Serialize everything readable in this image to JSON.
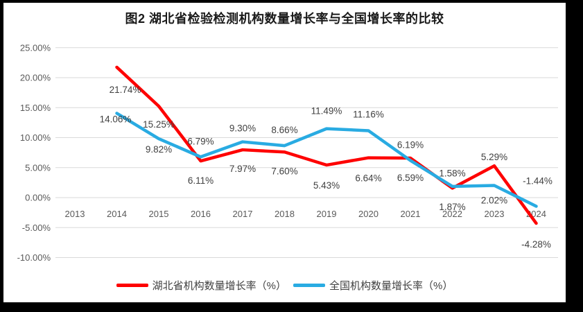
{
  "window": {
    "frame_color": "#000000",
    "background_color": "#ffffff"
  },
  "chart_data": {
    "type": "line",
    "title": "图2  湖北省检验检测机构数量增长率与全国增长率的比较",
    "categories": [
      "2013",
      "2014",
      "2015",
      "2016",
      "2017",
      "2018",
      "2019",
      "2020",
      "2021",
      "2022",
      "2023",
      "2024"
    ],
    "series": [
      {
        "id": "hubei",
        "name": "湖北省机构数量增长率（%）",
        "color": "#fe0000",
        "values": [
          null,
          21.74,
          15.25,
          6.11,
          7.97,
          7.6,
          5.43,
          6.64,
          6.59,
          1.58,
          5.29,
          -4.28
        ],
        "labels": [
          null,
          "21.74%",
          "15.25%",
          "6.11%",
          "7.97%",
          "7.60%",
          "5.43%",
          "6.64%",
          "6.59%",
          "1.58%",
          "5.29%",
          "-4.28%"
        ],
        "label_offsets": [
          null,
          [
            12,
            37
          ],
          [
            0,
            31
          ],
          [
            0,
            33
          ],
          [
            0,
            32
          ],
          [
            0,
            32
          ],
          [
            0,
            34
          ],
          [
            0,
            34
          ],
          [
            0,
            33
          ],
          [
            0,
            -17
          ],
          [
            0,
            -8
          ],
          [
            0,
            35
          ]
        ]
      },
      {
        "id": "national",
        "name": "全国机构数量增长率（%）",
        "color": "#29abe2",
        "values": [
          null,
          14.06,
          9.82,
          6.79,
          9.3,
          8.66,
          11.49,
          11.16,
          6.19,
          1.87,
          2.02,
          -1.44
        ],
        "labels": [
          null,
          "14.06%",
          "9.82%",
          "6.79%",
          "9.30%",
          "8.66%",
          "11.49%",
          "11.16%",
          "6.19%",
          "1.87%",
          "2.02%",
          "-1.44%"
        ],
        "label_offsets": [
          null,
          [
            -2,
            13
          ],
          [
            0,
            20
          ],
          [
            0,
            -18
          ],
          [
            0,
            -15
          ],
          [
            0,
            -18
          ],
          [
            0,
            -21
          ],
          [
            0,
            -19
          ],
          [
            0,
            -18
          ],
          [
            0,
            34
          ],
          [
            0,
            26
          ],
          [
            2,
            -32
          ]
        ]
      }
    ],
    "y_axis": {
      "min": -10,
      "max": 25,
      "step": 5,
      "ticks": [
        {
          "value": 25,
          "label": "25.00%"
        },
        {
          "value": 20,
          "label": "20.00%"
        },
        {
          "value": 15,
          "label": "15.00%"
        },
        {
          "value": 10,
          "label": "10.00%"
        },
        {
          "value": 5,
          "label": "5.00%"
        },
        {
          "value": 0,
          "label": "0.00%"
        },
        {
          "value": -5,
          "label": "-5.00%"
        },
        {
          "value": -10,
          "label": "-10.00%"
        }
      ]
    },
    "grid": true,
    "legend_position": "bottom",
    "colors": {
      "gridline": "#d9d9d9",
      "axis_text": "#595959",
      "data_label": "#404040",
      "title_text": "#1a1a1a"
    }
  }
}
